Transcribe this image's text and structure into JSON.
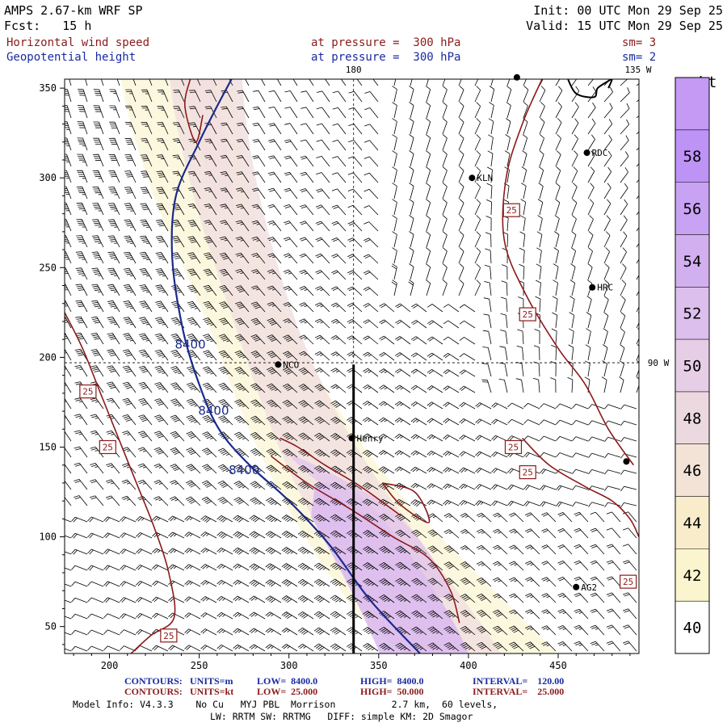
{
  "header": {
    "title_line1": "AMPS 2.67-km WRF SP",
    "title_line2": "Fcst:   15 h",
    "init": "Init: 00 UTC Mon 29 Sep 25",
    "valid": "Valid: 15 UTC Mon 29 Sep 25",
    "field1_name": "Horizontal wind speed",
    "field1_level": "at pressure =  300 hPa",
    "field1_sm": "sm= 3",
    "field2_name": "Geopotential height",
    "field2_level": "at pressure =  300 hPa",
    "field2_sm": "sm= 2"
  },
  "colors": {
    "wind_contour": "#8b1a1a",
    "height_contour": "#1a2a8c",
    "text_red": "#8b1a1a",
    "text_blue": "#1a2aa0",
    "barb": "#000000"
  },
  "chart_data": {
    "type": "heatmap",
    "x_range": [
      175,
      495
    ],
    "y_range": [
      35,
      355
    ],
    "x_ticks": [
      200,
      250,
      300,
      350,
      400,
      450
    ],
    "y_ticks": [
      50,
      100,
      150,
      200,
      250,
      300,
      350
    ],
    "fill_field": {
      "name": "Horizontal wind speed",
      "units": "kt",
      "levels": [
        40,
        42,
        44,
        46,
        48,
        50,
        52,
        54,
        56,
        58
      ],
      "colorbar_colors": [
        "#fdfce6",
        "#fbf5cf",
        "#f8eccb",
        "#f3e3d7",
        "#ecd9e0",
        "#e6cee6",
        "#dcbfec",
        "#d2b0f0",
        "#c8a2f3",
        "#bd93f6"
      ],
      "colorbar_label": "kt",
      "wind_max_core": [
        {
          "x": 330,
          "y": 60
        },
        {
          "x": 345,
          "y": 85
        },
        {
          "x": 360,
          "y": 105
        },
        {
          "x": 385,
          "y": 120
        },
        {
          "x": 395,
          "y": 50
        }
      ]
    },
    "height_contour": {
      "units": "m",
      "value": 8400,
      "label": "8400",
      "label_positions": [
        [
          245,
          205
        ],
        [
          258,
          168
        ],
        [
          275,
          135
        ]
      ],
      "path": [
        [
          373,
          35
        ],
        [
          345,
          65
        ],
        [
          323,
          95
        ],
        [
          300,
          120
        ],
        [
          278,
          140
        ],
        [
          261,
          160
        ],
        [
          250,
          185
        ],
        [
          241,
          215
        ],
        [
          235,
          255
        ],
        [
          237,
          290
        ],
        [
          250,
          320
        ],
        [
          260,
          340
        ],
        [
          268,
          355
        ]
      ]
    },
    "wind_contours": {
      "units": "kt",
      "value": 25,
      "label": "25",
      "lines": [
        [
          [
            175,
            225
          ],
          [
            185,
            205
          ],
          [
            195,
            180
          ],
          [
            205,
            155
          ],
          [
            215,
            130
          ],
          [
            225,
            105
          ],
          [
            233,
            80
          ],
          [
            236,
            55
          ],
          [
            223,
            45
          ],
          [
            212,
            35
          ]
        ],
        [
          [
            290,
            145
          ],
          [
            310,
            130
          ],
          [
            335,
            115
          ],
          [
            358,
            100
          ],
          [
            378,
            88
          ],
          [
            390,
            70
          ],
          [
            395,
            52
          ]
        ],
        [
          [
            295,
            155
          ],
          [
            305,
            150
          ],
          [
            320,
            140
          ],
          [
            340,
            128
          ],
          [
            362,
            112
          ]
        ],
        [
          [
            352,
            130
          ],
          [
            362,
            118
          ],
          [
            378,
            108
          ],
          [
            370,
            125
          ],
          [
            352,
            130
          ]
        ],
        [
          [
            441,
            355
          ],
          [
            430,
            330
          ],
          [
            421,
            300
          ],
          [
            420,
            265
          ],
          [
            432,
            235
          ],
          [
            450,
            205
          ],
          [
            465,
            185
          ],
          [
            478,
            160
          ],
          [
            492,
            140
          ]
        ],
        [
          [
            430,
            155
          ],
          [
            445,
            140
          ],
          [
            465,
            128
          ],
          [
            480,
            120
          ],
          [
            490,
            110
          ],
          [
            495,
            100
          ]
        ],
        [
          [
            245,
            355
          ],
          [
            242,
            340
          ],
          [
            248,
            320
          ],
          [
            252,
            335
          ]
        ]
      ],
      "label_positions": [
        [
          188,
          181
        ],
        [
          199,
          150
        ],
        [
          233,
          45
        ],
        [
          424,
          282
        ],
        [
          433,
          224
        ],
        [
          425,
          150
        ],
        [
          433,
          136
        ],
        [
          489,
          75
        ]
      ]
    },
    "reference_lines": {
      "lon_180_x": 336,
      "lat_90w_y": 197,
      "lon_label": "180",
      "lat_label": "90 W",
      "corner_label": "135 W"
    },
    "stations": [
      {
        "name": "",
        "x": 427,
        "y": 356
      },
      {
        "name": "RDC",
        "x": 466,
        "y": 314
      },
      {
        "name": "KLN",
        "x": 402,
        "y": 300
      },
      {
        "name": "HRC",
        "x": 469,
        "y": 239
      },
      {
        "name": "NCO",
        "x": 294,
        "y": 196
      },
      {
        "name": "Henry",
        "x": 335,
        "y": 155
      },
      {
        "name": "",
        "x": 488,
        "y": 142
      },
      {
        "name": "AG2",
        "x": 460,
        "y": 72
      }
    ],
    "section_line": [
      [
        336,
        196
      ],
      [
        336,
        35
      ]
    ],
    "coastline": [
      [
        455,
        356
      ],
      [
        460,
        347
      ],
      [
        470,
        345
      ],
      [
        472,
        350
      ],
      [
        478,
        354
      ],
      [
        480,
        355
      ],
      [
        478,
        350
      ]
    ]
  },
  "footer": {
    "row1": {
      "label": "CONTOURS:",
      "units": "UNITS=m",
      "low": "LOW=  8400.0",
      "high": "HIGH=  8400.0",
      "interval": "INTERVAL=    120.00"
    },
    "row2": {
      "label": "CONTOURS:",
      "units": "UNITS=kt",
      "low": "LOW=  25.000",
      "high": "HIGH=  50.000",
      "interval": "INTERVAL=    25.000"
    },
    "model_info": "Model Info: V4.3.3    No Cu   MYJ PBL  Morrison          2.7 km,  60 levels,",
    "model_info2": "LW: RRTM SW: RRTMG   DIFF: simple KM: 2D Smagor"
  }
}
